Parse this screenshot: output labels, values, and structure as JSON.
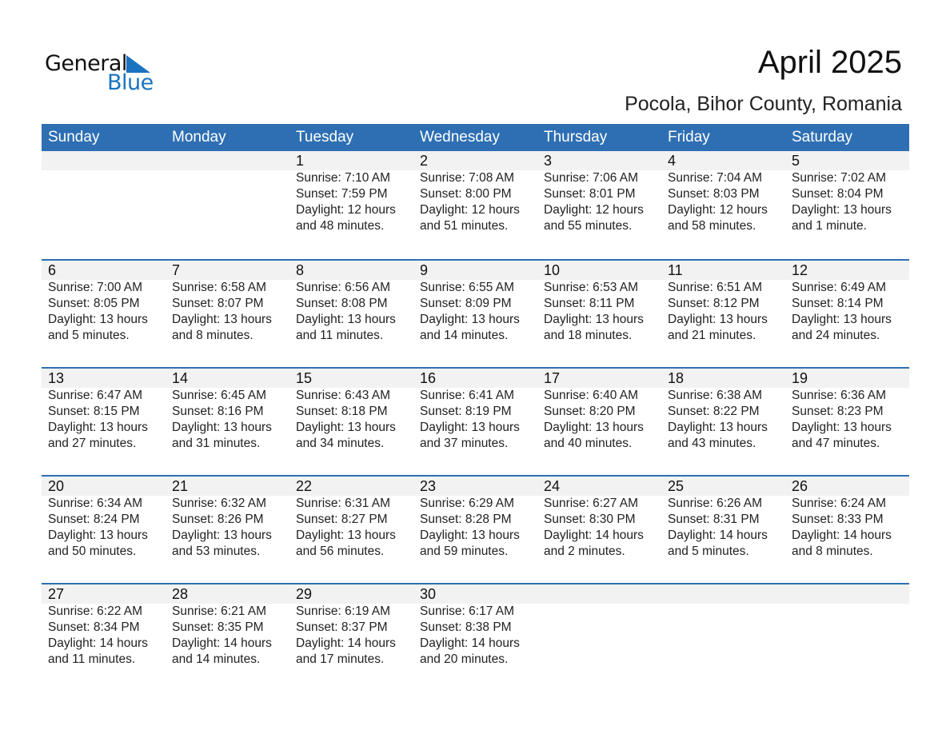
{
  "logo": {
    "line1": "General",
    "line2": "Blue"
  },
  "title": "April 2025",
  "subtitle": "Pocola, Bihor County, Romania",
  "colors": {
    "header": "#2e6fb3",
    "date_strip": "#f2f2f2",
    "logo_blue": "#1a73c0"
  },
  "weekdays": [
    "Sunday",
    "Monday",
    "Tuesday",
    "Wednesday",
    "Thursday",
    "Friday",
    "Saturday"
  ],
  "weeks": [
    [
      null,
      null,
      {
        "date": "1",
        "sunrise": "Sunrise: 7:10 AM",
        "sunset": "Sunset: 7:59 PM",
        "daylight": "Daylight: 12 hours",
        "minutes": "and 48 minutes."
      },
      {
        "date": "2",
        "sunrise": "Sunrise: 7:08 AM",
        "sunset": "Sunset: 8:00 PM",
        "daylight": "Daylight: 12 hours",
        "minutes": "and 51 minutes."
      },
      {
        "date": "3",
        "sunrise": "Sunrise: 7:06 AM",
        "sunset": "Sunset: 8:01 PM",
        "daylight": "Daylight: 12 hours",
        "minutes": "and 55 minutes."
      },
      {
        "date": "4",
        "sunrise": "Sunrise: 7:04 AM",
        "sunset": "Sunset: 8:03 PM",
        "daylight": "Daylight: 12 hours",
        "minutes": "and 58 minutes."
      },
      {
        "date": "5",
        "sunrise": "Sunrise: 7:02 AM",
        "sunset": "Sunset: 8:04 PM",
        "daylight": "Daylight: 13 hours",
        "minutes": "and 1 minute."
      }
    ],
    [
      {
        "date": "6",
        "sunrise": "Sunrise: 7:00 AM",
        "sunset": "Sunset: 8:05 PM",
        "daylight": "Daylight: 13 hours",
        "minutes": "and 5 minutes."
      },
      {
        "date": "7",
        "sunrise": "Sunrise: 6:58 AM",
        "sunset": "Sunset: 8:07 PM",
        "daylight": "Daylight: 13 hours",
        "minutes": "and 8 minutes."
      },
      {
        "date": "8",
        "sunrise": "Sunrise: 6:56 AM",
        "sunset": "Sunset: 8:08 PM",
        "daylight": "Daylight: 13 hours",
        "minutes": "and 11 minutes."
      },
      {
        "date": "9",
        "sunrise": "Sunrise: 6:55 AM",
        "sunset": "Sunset: 8:09 PM",
        "daylight": "Daylight: 13 hours",
        "minutes": "and 14 minutes."
      },
      {
        "date": "10",
        "sunrise": "Sunrise: 6:53 AM",
        "sunset": "Sunset: 8:11 PM",
        "daylight": "Daylight: 13 hours",
        "minutes": "and 18 minutes."
      },
      {
        "date": "11",
        "sunrise": "Sunrise: 6:51 AM",
        "sunset": "Sunset: 8:12 PM",
        "daylight": "Daylight: 13 hours",
        "minutes": "and 21 minutes."
      },
      {
        "date": "12",
        "sunrise": "Sunrise: 6:49 AM",
        "sunset": "Sunset: 8:14 PM",
        "daylight": "Daylight: 13 hours",
        "minutes": "and 24 minutes."
      }
    ],
    [
      {
        "date": "13",
        "sunrise": "Sunrise: 6:47 AM",
        "sunset": "Sunset: 8:15 PM",
        "daylight": "Daylight: 13 hours",
        "minutes": "and 27 minutes."
      },
      {
        "date": "14",
        "sunrise": "Sunrise: 6:45 AM",
        "sunset": "Sunset: 8:16 PM",
        "daylight": "Daylight: 13 hours",
        "minutes": "and 31 minutes."
      },
      {
        "date": "15",
        "sunrise": "Sunrise: 6:43 AM",
        "sunset": "Sunset: 8:18 PM",
        "daylight": "Daylight: 13 hours",
        "minutes": "and 34 minutes."
      },
      {
        "date": "16",
        "sunrise": "Sunrise: 6:41 AM",
        "sunset": "Sunset: 8:19 PM",
        "daylight": "Daylight: 13 hours",
        "minutes": "and 37 minutes."
      },
      {
        "date": "17",
        "sunrise": "Sunrise: 6:40 AM",
        "sunset": "Sunset: 8:20 PM",
        "daylight": "Daylight: 13 hours",
        "minutes": "and 40 minutes."
      },
      {
        "date": "18",
        "sunrise": "Sunrise: 6:38 AM",
        "sunset": "Sunset: 8:22 PM",
        "daylight": "Daylight: 13 hours",
        "minutes": "and 43 minutes."
      },
      {
        "date": "19",
        "sunrise": "Sunrise: 6:36 AM",
        "sunset": "Sunset: 8:23 PM",
        "daylight": "Daylight: 13 hours",
        "minutes": "and 47 minutes."
      }
    ],
    [
      {
        "date": "20",
        "sunrise": "Sunrise: 6:34 AM",
        "sunset": "Sunset: 8:24 PM",
        "daylight": "Daylight: 13 hours",
        "minutes": "and 50 minutes."
      },
      {
        "date": "21",
        "sunrise": "Sunrise: 6:32 AM",
        "sunset": "Sunset: 8:26 PM",
        "daylight": "Daylight: 13 hours",
        "minutes": "and 53 minutes."
      },
      {
        "date": "22",
        "sunrise": "Sunrise: 6:31 AM",
        "sunset": "Sunset: 8:27 PM",
        "daylight": "Daylight: 13 hours",
        "minutes": "and 56 minutes."
      },
      {
        "date": "23",
        "sunrise": "Sunrise: 6:29 AM",
        "sunset": "Sunset: 8:28 PM",
        "daylight": "Daylight: 13 hours",
        "minutes": "and 59 minutes."
      },
      {
        "date": "24",
        "sunrise": "Sunrise: 6:27 AM",
        "sunset": "Sunset: 8:30 PM",
        "daylight": "Daylight: 14 hours",
        "minutes": "and 2 minutes."
      },
      {
        "date": "25",
        "sunrise": "Sunrise: 6:26 AM",
        "sunset": "Sunset: 8:31 PM",
        "daylight": "Daylight: 14 hours",
        "minutes": "and 5 minutes."
      },
      {
        "date": "26",
        "sunrise": "Sunrise: 6:24 AM",
        "sunset": "Sunset: 8:33 PM",
        "daylight": "Daylight: 14 hours",
        "minutes": "and 8 minutes."
      }
    ],
    [
      {
        "date": "27",
        "sunrise": "Sunrise: 6:22 AM",
        "sunset": "Sunset: 8:34 PM",
        "daylight": "Daylight: 14 hours",
        "minutes": "and 11 minutes."
      },
      {
        "date": "28",
        "sunrise": "Sunrise: 6:21 AM",
        "sunset": "Sunset: 8:35 PM",
        "daylight": "Daylight: 14 hours",
        "minutes": "and 14 minutes."
      },
      {
        "date": "29",
        "sunrise": "Sunrise: 6:19 AM",
        "sunset": "Sunset: 8:37 PM",
        "daylight": "Daylight: 14 hours",
        "minutes": "and 17 minutes."
      },
      {
        "date": "30",
        "sunrise": "Sunrise: 6:17 AM",
        "sunset": "Sunset: 8:38 PM",
        "daylight": "Daylight: 14 hours",
        "minutes": "and 20 minutes."
      },
      null,
      null,
      null
    ]
  ]
}
